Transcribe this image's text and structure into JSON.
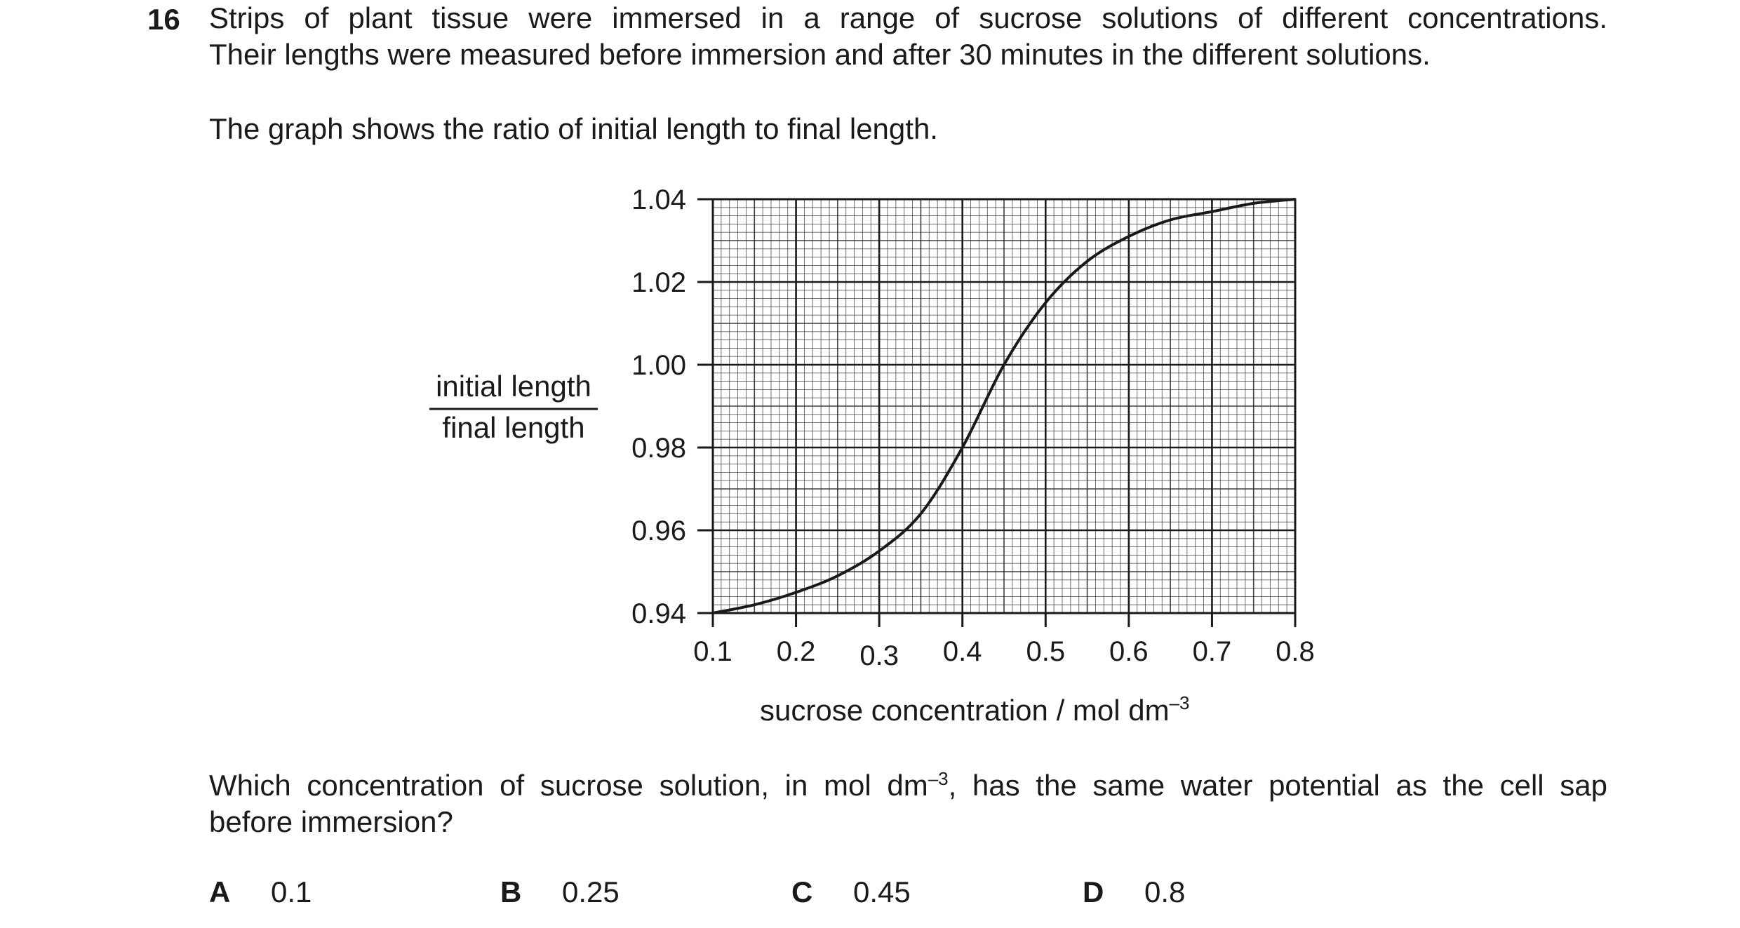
{
  "question": {
    "number": "16",
    "intro_line1": "Strips of plant tissue were immersed in a range of sucrose solutions of different concentrations.",
    "intro_line2": "Their lengths were measured before immersion and after 30 minutes in the different solutions.",
    "graph_intro": "The graph shows the ratio of initial length to final length.",
    "prompt_line1_pre": "Which concentration of sucrose solution, in mol dm",
    "prompt_line1_sup": "–3",
    "prompt_line1_post": ", has the same water potential as the cell sap",
    "prompt_line2": "before immersion?"
  },
  "options": [
    {
      "letter": "A",
      "value": "0.1"
    },
    {
      "letter": "B",
      "value": "0.25"
    },
    {
      "letter": "C",
      "value": "0.45"
    },
    {
      "letter": "D",
      "value": "0.8"
    }
  ],
  "chart_data": {
    "type": "line",
    "ylabel_numerator": "initial length",
    "ylabel_denominator": "final length",
    "xlabel": "sucrose concentration / mol dm",
    "xlabel_sup": "–3",
    "xlim": [
      0.1,
      0.8
    ],
    "ylim": [
      0.94,
      1.04
    ],
    "x_ticks": [
      "0.1",
      "0.2",
      "0.3",
      "0.4",
      "0.5",
      "0.6",
      "0.7",
      "0.8"
    ],
    "y_ticks": [
      "0.94",
      "0.96",
      "0.98",
      "1.00",
      "1.02",
      "1.04"
    ],
    "grid": true,
    "series": [
      {
        "x": [
          0.1,
          0.15,
          0.2,
          0.25,
          0.3,
          0.35,
          0.4,
          0.45,
          0.5,
          0.55,
          0.6,
          0.65,
          0.7,
          0.75,
          0.8
        ],
        "y": [
          0.94,
          0.942,
          0.945,
          0.949,
          0.955,
          0.964,
          0.98,
          1.0,
          1.015,
          1.025,
          1.031,
          1.035,
          1.037,
          1.039,
          1.04
        ]
      }
    ],
    "colors": {
      "line": "#1a1a1a",
      "grid_major": "#1a1a1a",
      "grid_minor": "#2a2a2a"
    }
  }
}
